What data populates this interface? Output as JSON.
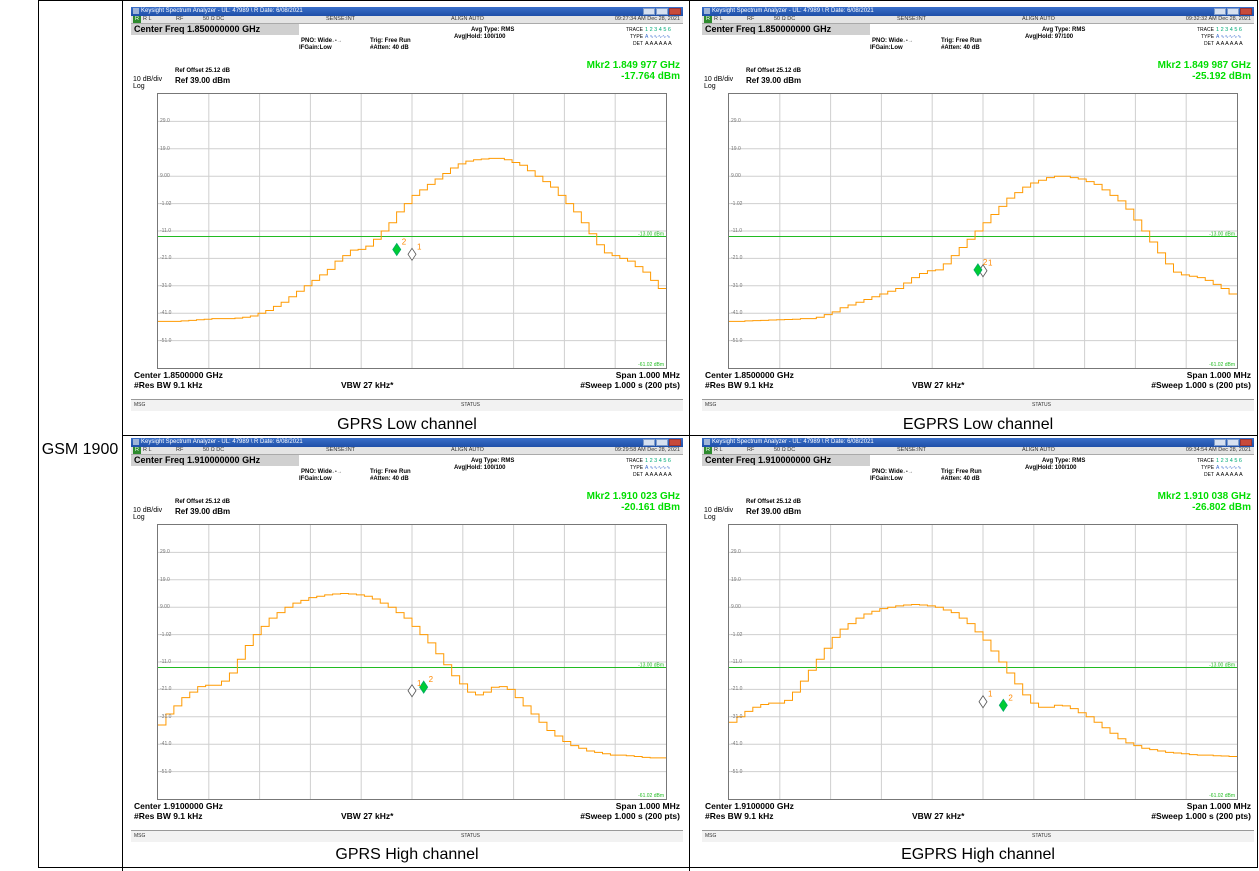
{
  "row_label": "GSM 1900",
  "panels": [
    {
      "caption": "GPRS Low channel",
      "window_title": "Keysight Spectrum Analyzer - UL: 47989 \\ R Date: 6/08/2021",
      "status": {
        "rl": "R L",
        "rf": "RF",
        "ohm": "50 Ω  DC",
        "sense": "SENSE:INT",
        "align": "ALIGN AUTO",
        "datetime": "09:27:34 AM Dec 28, 2021"
      },
      "center_freq": "Center Freq 1.850000000 GHz",
      "pno": "PNO: Wide",
      "ifgain": "IFGain:Low",
      "trig": "Trig: Free Run",
      "atten": "#Atten: 40 dB",
      "avg_type": "Avg Type: RMS",
      "avg_hold": "Avg|Hold: 100/100",
      "trace": "TRACE",
      "type": "TYPE",
      "det": "DET",
      "trace_nums": "1 2 3 4 5 6",
      "det_vals": "A A A A A A",
      "ref_offset": "Ref Offset 25.12 dB",
      "ref": "Ref 39.00 dBm",
      "scale": "10 dB/div",
      "log": "Log",
      "marker_freq": "Mkr2 1.849 977 GHz",
      "marker_level": "-17.764 dBm",
      "center": "Center 1.8500000 GHz",
      "res_bw": "#Res BW 9.1 kHz",
      "vbw": "VBW 27 kHz*",
      "span": "Span 1.000 MHz",
      "sweep": "#Sweep  1.000 s (200 pts)",
      "msg": "MSG",
      "status_label": "STATUS",
      "display_line": "-13.00 dBm",
      "bottom_line": "-61.02 dBm",
      "trace_y": [
        -44,
        -44,
        -44,
        -43.8,
        -43.6,
        -43.4,
        -43.2,
        -43,
        -43,
        -43,
        -42.8,
        -42.5,
        -42,
        -41,
        -40,
        -38.5,
        -37,
        -35,
        -33,
        -31,
        -29,
        -27,
        -25,
        -22,
        -20,
        -18,
        -17.7,
        -16.5,
        -14,
        -11,
        -8,
        -4,
        -1,
        2,
        4,
        6,
        8,
        10,
        12,
        13.5,
        14.5,
        15,
        15.3,
        15.5,
        15.5,
        15,
        14,
        13,
        11,
        9,
        7,
        5,
        2,
        -1,
        -4,
        -8,
        -12,
        -16,
        -19,
        -20,
        -21,
        -22,
        -24,
        -26,
        -29,
        -32
      ],
      "m1": {
        "x": 0.5,
        "y": -19.5
      },
      "m2": {
        "x": 0.47,
        "y": -17.764
      }
    },
    {
      "caption": "EGPRS Low channel",
      "window_title": "Keysight Spectrum Analyzer - UL: 47989 \\ R Date: 6/08/2021",
      "status": {
        "rl": "R L",
        "rf": "RF",
        "ohm": "50 Ω  DC",
        "sense": "SENSE:INT",
        "align": "ALIGN AUTO",
        "datetime": "09:32:32 AM Dec 28, 2021"
      },
      "center_freq": "Center Freq 1.850000000 GHz",
      "pno": "PNO: Wide",
      "ifgain": "IFGain:Low",
      "trig": "Trig: Free Run",
      "atten": "#Atten: 40 dB",
      "avg_type": "Avg Type: RMS",
      "avg_hold": "Avg|Hold: 97/100",
      "trace": "TRACE",
      "type": "TYPE",
      "det": "DET",
      "trace_nums": "1 2 3 4 5 6",
      "det_vals": "A A A A A A",
      "ref_offset": "Ref Offset 25.12 dB",
      "ref": "Ref 39.00 dBm",
      "scale": "10 dB/div",
      "log": "Log",
      "marker_freq": "Mkr2 1.849 987 GHz",
      "marker_level": "-25.192 dBm",
      "center": "Center 1.8500000 GHz",
      "res_bw": "#Res BW 9.1 kHz",
      "vbw": "VBW 27 kHz*",
      "span": "Span 1.000 MHz",
      "sweep": "#Sweep  1.000 s (200 pts)",
      "msg": "MSG",
      "status_label": "STATUS",
      "display_line": "-13.00 dBm",
      "bottom_line": "-61.02 dBm",
      "trace_y": [
        -44,
        -44,
        -43.8,
        -43.7,
        -43.6,
        -43.5,
        -43.4,
        -43.3,
        -43.2,
        -43,
        -43,
        -42.5,
        -41.5,
        -40.5,
        -39,
        -38,
        -37,
        -36,
        -35,
        -34,
        -33,
        -32,
        -30,
        -28,
        -26.5,
        -25.5,
        -25.2,
        -23,
        -20,
        -17,
        -14,
        -11,
        -8,
        -5,
        -2,
        1,
        3,
        5,
        6.5,
        7.5,
        8.5,
        9,
        9,
        8.5,
        8,
        7,
        6,
        4,
        2,
        0,
        -3,
        -7,
        -11,
        -15,
        -19,
        -23,
        -26,
        -27,
        -27.5,
        -28,
        -29,
        -30.5,
        -32,
        -34
      ],
      "m1": {
        "x": 0.5,
        "y": -25.5
      },
      "m2": {
        "x": 0.49,
        "y": -25.192
      }
    },
    {
      "caption": "GPRS High channel",
      "window_title": "Keysight Spectrum Analyzer - UL: 47989 \\ R Date: 6/08/2021",
      "status": {
        "rl": "R L",
        "rf": "RF",
        "ohm": "50 Ω  DC",
        "sense": "SENSE:INT",
        "align": "ALIGN AUTO",
        "datetime": "09:29:58 AM Dec 28, 2021"
      },
      "center_freq": "Center Freq 1.910000000 GHz",
      "pno": "PNO: Wide",
      "ifgain": "IFGain:Low",
      "trig": "Trig: Free Run",
      "atten": "#Atten: 40 dB",
      "avg_type": "Avg Type: RMS",
      "avg_hold": "Avg|Hold: 100/100",
      "trace": "TRACE",
      "type": "TYPE",
      "det": "DET",
      "trace_nums": "1 2 3 4 5 6",
      "det_vals": "A A A A A A",
      "ref_offset": "Ref Offset 25.12 dB",
      "ref": "Ref 39.00 dBm",
      "scale": "10 dB/div",
      "log": "Log",
      "marker_freq": "Mkr2 1.910 023 GHz",
      "marker_level": "-20.161 dBm",
      "center": "Center 1.9100000 GHz",
      "res_bw": "#Res BW 9.1 kHz",
      "vbw": "VBW 27 kHz*",
      "span": "Span 1.000 MHz",
      "sweep": "#Sweep  1.000 s (200 pts)",
      "msg": "MSG",
      "status_label": "STATUS",
      "display_line": "-13.00 dBm",
      "bottom_line": "-61.02 dBm",
      "trace_y": [
        -34,
        -30,
        -27,
        -24,
        -22,
        -20,
        -19.5,
        -19.5,
        -18,
        -15,
        -10,
        -5,
        -1,
        2,
        5,
        7,
        9,
        10.5,
        11.5,
        12.5,
        13,
        13.5,
        13.8,
        14,
        13.8,
        13.5,
        13,
        12,
        10.5,
        9,
        7,
        5,
        2,
        -1,
        -4,
        -8,
        -12,
        -16,
        -19,
        -22,
        -23,
        -22,
        -20.2,
        -20,
        -21,
        -24,
        -27,
        -30,
        -33,
        -36,
        -38,
        -40,
        -41.5,
        -42.5,
        -43.5,
        -44,
        -44.5,
        -45,
        -45,
        -45.2,
        -45.5,
        -45.8,
        -46,
        -46
      ],
      "m1": {
        "x": 0.5,
        "y": -21.5
      },
      "m2": {
        "x": 0.523,
        "y": -20.161
      }
    },
    {
      "caption": "EGPRS High channel",
      "window_title": "Keysight Spectrum Analyzer - UL: 47989 \\ R Date: 6/08/2021",
      "status": {
        "rl": "R L",
        "rf": "RF",
        "ohm": "50 Ω  DC",
        "sense": "SENSE:INT",
        "align": "ALIGN AUTO",
        "datetime": "09:34:54 AM Dec 28, 2021"
      },
      "center_freq": "Center Freq 1.910000000 GHz",
      "pno": "PNO: Wide",
      "ifgain": "IFGain:Low",
      "trig": "Trig: Free Run",
      "atten": "#Atten: 40 dB",
      "avg_type": "Avg Type: RMS",
      "avg_hold": "Avg|Hold: 100/100",
      "trace": "TRACE",
      "type": "TYPE",
      "det": "DET",
      "trace_nums": "1 2 3 4 5 6",
      "det_vals": "A A A A A A",
      "ref_offset": "Ref Offset 25.12 dB",
      "ref": "Ref 39.00 dBm",
      "scale": "10 dB/div",
      "log": "Log",
      "marker_freq": "Mkr2 1.910 038 GHz",
      "marker_level": "-26.802 dBm",
      "center": "Center 1.9100000 GHz",
      "res_bw": "#Res BW 9.1 kHz",
      "vbw": "VBW 27 kHz*",
      "span": "Span 1.000 MHz",
      "sweep": "#Sweep  1.000 s (200 pts)",
      "msg": "MSG",
      "status_label": "STATUS",
      "display_line": "-13.00 dBm",
      "bottom_line": "-61.02 dBm",
      "trace_y": [
        -33,
        -31,
        -29,
        -27.5,
        -26.5,
        -26,
        -26,
        -25,
        -22,
        -18,
        -14,
        -10,
        -6,
        -2,
        1,
        3,
        5,
        6.5,
        7.5,
        8.5,
        9,
        9.5,
        9.8,
        10,
        9.8,
        9.5,
        9,
        8,
        7,
        5,
        3,
        0,
        -3,
        -7,
        -11,
        -15,
        -19,
        -23,
        -26,
        -27.5,
        -27.5,
        -26.8,
        -27,
        -28,
        -29.5,
        -31,
        -33,
        -35,
        -37,
        -39,
        -40.5,
        -41.5,
        -42.5,
        -43,
        -43.5,
        -44,
        -44.2,
        -44.5,
        -44.8,
        -45,
        -45,
        -45.2,
        -45.3,
        -45.5
      ],
      "m1": {
        "x": 0.5,
        "y": -25.5
      },
      "m2": {
        "x": 0.54,
        "y": -26.802
      }
    }
  ],
  "y_axis": {
    "labels": [
      "29.0",
      "19.0",
      "9.00",
      "-1.02",
      "-11.0",
      "-21.0",
      "-31.0",
      "-41.0",
      "-51.0"
    ],
    "ref_dbm": 39,
    "div_db": 10,
    "divisions": 10
  },
  "colors": {
    "trace": "#ff9a00",
    "display_line": "#22bb22",
    "marker": "#00cc33",
    "marker_label": "#ff8800",
    "ref_marker": "#ffffff"
  }
}
